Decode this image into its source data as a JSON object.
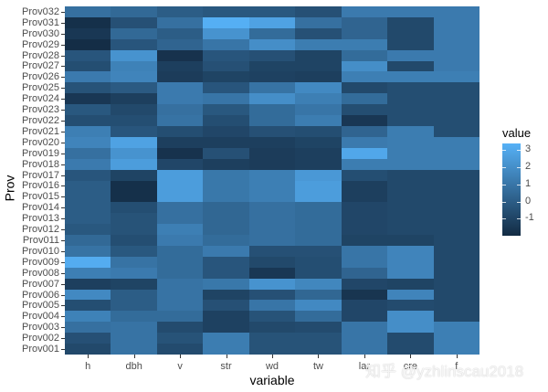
{
  "chart_data": {
    "type": "heatmap",
    "title": "",
    "xlabel": "variable",
    "ylabel": "Prov",
    "x_categories": [
      "h",
      "dbh",
      "v",
      "str",
      "wd",
      "tw",
      "lar?",
      "cre?",
      "f?"
    ],
    "y_categories": [
      "Prov032",
      "Prov031",
      "Prov030",
      "Prov029",
      "Prov028",
      "Prov027",
      "Prov026",
      "Prov025",
      "Prov024",
      "Prov023",
      "Prov022",
      "Prov021",
      "Prov020",
      "Prov019",
      "Prov018",
      "Prov017",
      "Prov016",
      "Prov015",
      "Prov014",
      "Prov013",
      "Prov012",
      "Prov011",
      "Prov010",
      "Prov009",
      "Prov008",
      "Prov007",
      "Prov006",
      "Prov005",
      "Prov004",
      "Prov003",
      "Prov002",
      "Prov001"
    ],
    "values": [
      [
        0.8,
        0.5,
        0.0,
        -0.2,
        -0.2,
        -0.5,
        1.2,
        1.2,
        1.2
      ],
      [
        -1.8,
        -0.5,
        0.8,
        3.3,
        2.8,
        0.8,
        0.3,
        -0.8,
        1.2
      ],
      [
        -1.5,
        0.5,
        0.0,
        2.2,
        0.6,
        -0.5,
        0.3,
        -0.8,
        1.2
      ],
      [
        -1.9,
        -0.3,
        0.3,
        1.0,
        2.0,
        1.3,
        1.3,
        -0.8,
        1.2
      ],
      [
        -0.3,
        2.2,
        -1.7,
        -0.3,
        -0.5,
        -1.0,
        0.6,
        1.2,
        1.2
      ],
      [
        -0.6,
        1.5,
        -1.2,
        -0.5,
        -1.0,
        -1.0,
        2.0,
        -0.8,
        1.2
      ],
      [
        1.2,
        1.6,
        -1.3,
        -1.0,
        -1.1,
        -1.2,
        1.4,
        1.4,
        1.4
      ],
      [
        -0.4,
        -0.1,
        1.2,
        -0.3,
        0.9,
        1.8,
        -0.8,
        -0.6,
        -0.6
      ],
      [
        -1.5,
        -1.2,
        1.2,
        1.0,
        2.0,
        1.4,
        0.6,
        -0.6,
        -0.6
      ],
      [
        -0.2,
        -0.8,
        0.8,
        -0.2,
        0.6,
        1.0,
        -0.6,
        -0.6,
        -0.6
      ],
      [
        -0.6,
        -0.6,
        0.9,
        -0.6,
        0.6,
        1.3,
        -1.5,
        -0.6,
        -0.6
      ],
      [
        1.4,
        -0.3,
        -0.6,
        -0.9,
        -0.5,
        -0.6,
        0.3,
        1.3,
        -0.6
      ],
      [
        1.6,
        2.8,
        -1.2,
        -1.2,
        -1.2,
        -1.0,
        1.2,
        1.3,
        1.3
      ],
      [
        0.8,
        2.2,
        -1.7,
        -0.5,
        -1.3,
        -1.2,
        3.0,
        1.3,
        1.3
      ],
      [
        1.2,
        2.6,
        -0.9,
        -1.2,
        -1.3,
        -1.2,
        1.3,
        1.3,
        1.3
      ],
      [
        -0.3,
        -1.0,
        2.6,
        1.1,
        1.4,
        2.4,
        -0.6,
        -0.8,
        -0.8
      ],
      [
        0.0,
        -1.8,
        2.6,
        1.1,
        1.4,
        2.6,
        -1.2,
        -0.8,
        -0.8
      ],
      [
        0.0,
        -1.8,
        2.6,
        1.1,
        1.4,
        2.6,
        -1.2,
        -0.8,
        -0.8
      ],
      [
        0.0,
        -0.6,
        0.8,
        0.4,
        0.8,
        0.6,
        -0.9,
        -0.8,
        -0.8
      ],
      [
        0.0,
        -0.4,
        0.8,
        0.4,
        0.8,
        0.6,
        -0.9,
        -0.8,
        -0.8
      ],
      [
        -0.2,
        -0.4,
        1.4,
        0.4,
        0.8,
        0.6,
        -0.9,
        -0.8,
        -0.8
      ],
      [
        0.5,
        -0.6,
        1.2,
        0.6,
        0.8,
        0.6,
        -1.0,
        -1.0,
        -0.8
      ],
      [
        0.9,
        -0.2,
        0.6,
        1.2,
        -0.5,
        -0.5,
        1.0,
        1.6,
        -0.8
      ],
      [
        3.2,
        0.9,
        0.6,
        -0.3,
        -0.8,
        -0.6,
        1.0,
        1.6,
        -0.8
      ],
      [
        1.4,
        1.2,
        0.6,
        -0.3,
        -1.5,
        -0.6,
        0.3,
        1.6,
        -0.8
      ],
      [
        -1.2,
        -1.0,
        0.9,
        1.1,
        2.2,
        1.7,
        -0.9,
        -1.0,
        -0.8
      ],
      [
        1.8,
        0.0,
        0.9,
        -1.0,
        -0.5,
        0.4,
        -1.6,
        1.6,
        -0.8
      ],
      [
        -0.6,
        0.0,
        0.9,
        -0.5,
        1.0,
        1.8,
        -0.9,
        -0.7,
        -0.8
      ],
      [
        1.5,
        0.6,
        0.6,
        -1.1,
        -0.4,
        0.6,
        -0.9,
        2.0,
        -0.8
      ],
      [
        0.8,
        0.9,
        -0.7,
        -1.1,
        -0.8,
        -0.7,
        1.0,
        2.0,
        1.4
      ],
      [
        -0.5,
        0.9,
        -0.4,
        1.3,
        -0.4,
        -0.4,
        1.0,
        -0.7,
        1.4
      ],
      [
        -0.8,
        0.9,
        -0.7,
        1.3,
        -0.4,
        -0.4,
        1.0,
        -0.7,
        1.4
      ]
    ],
    "legend": {
      "title": "value",
      "ticks": [
        "3",
        "2",
        "1",
        "0",
        "-1"
      ],
      "position": "right",
      "low_color": "#132B43",
      "high_color": "#56B1F7",
      "range": [
        -2,
        3.4
      ]
    },
    "grid": true
  },
  "axes": {
    "x_title": "variable",
    "y_title": "Prov",
    "x_labels": [
      "h",
      "dbh",
      "v",
      "str",
      "wd",
      "tw",
      "lar",
      "cre",
      "f"
    ]
  },
  "watermark": "知乎 @yzhlinscau2018"
}
